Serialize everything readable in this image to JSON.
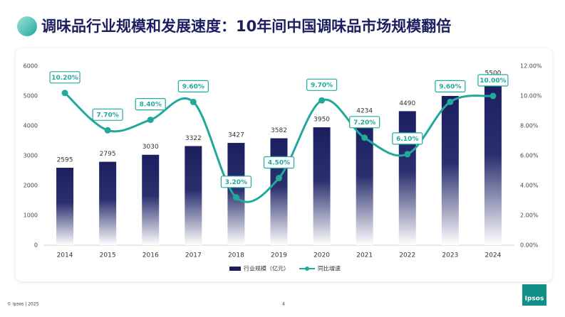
{
  "chart_data": {
    "type": "bar_line",
    "title": "调味品行业规模和发展速度：10年间中国调味品市场规模翻倍",
    "categories": [
      "2014",
      "2015",
      "2016",
      "2017",
      "2018",
      "2019",
      "2020",
      "2021",
      "2022",
      "2023",
      "2024"
    ],
    "series": [
      {
        "name": "行业规模（亿元）",
        "type": "bar",
        "color": "#1b1f5f",
        "values": [
          2595,
          2795,
          3030,
          3322,
          3427,
          3582,
          3950,
          4234,
          4490,
          5000,
          5500
        ]
      },
      {
        "name": "同比增速",
        "type": "line",
        "axis": "y2",
        "color": "#22a99b",
        "values": [
          10.2,
          7.7,
          8.4,
          9.6,
          3.2,
          4.5,
          9.7,
          7.2,
          6.1,
          9.6,
          10.0
        ],
        "value_labels": [
          "10.20%",
          "7.70%",
          "8.40%",
          "9.60%",
          "3.20%",
          "4.50%",
          "9.70%",
          "7.20%",
          "6.10%",
          "9.60%",
          "10.00%"
        ]
      }
    ],
    "ylim": [
      0,
      6000
    ],
    "yticks": [
      0,
      1000,
      2000,
      3000,
      4000,
      5000,
      6000
    ],
    "y2lim": [
      0,
      12
    ],
    "y2ticks": [
      {
        "value": 0,
        "label": "0.00%"
      },
      {
        "value": 2,
        "label": "2.00%"
      },
      {
        "value": 4,
        "label": "4.00%"
      },
      {
        "value": 6,
        "label": "6.00%"
      },
      {
        "value": 8,
        "label": "8.00%"
      },
      {
        "value": 10,
        "label": "10.00%"
      },
      {
        "value": 12,
        "label": "12.00%"
      }
    ],
    "legend": "bottom"
  },
  "footer": {
    "copyright": "© Ipsos | 2025",
    "page": "4",
    "logo": "Ipsos"
  }
}
